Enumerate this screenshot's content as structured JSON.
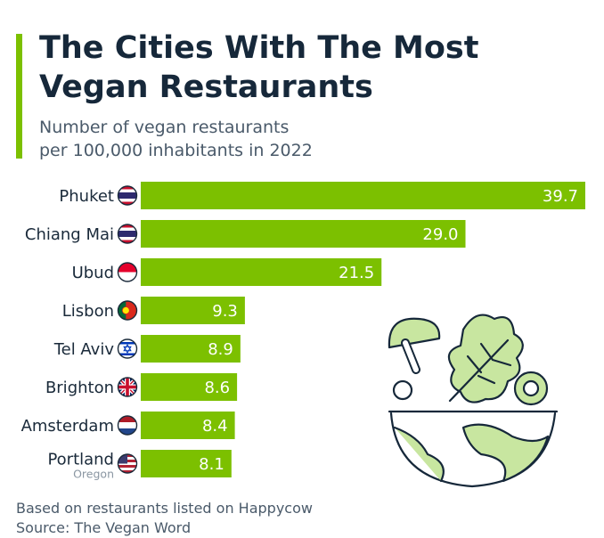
{
  "header": {
    "title": "The Cities With The Most Vegan Restaurants",
    "subtitle_line1": "Number of vegan restaurants",
    "subtitle_line2": "per 100,000 inhabitants in 2022"
  },
  "footer": {
    "note": "Based on restaurants listed on Happycow",
    "source": "Source: The Vegan Word"
  },
  "colors": {
    "accent": "#7cc000",
    "bar": "#7cc000",
    "text": "#1a2a3a"
  },
  "chart_data": {
    "type": "bar",
    "orientation": "horizontal",
    "title": "The Cities With The Most Vegan Restaurants",
    "subtitle": "Number of vegan restaurants per 100,000 inhabitants in 2022",
    "categories": [
      "Phuket",
      "Chiang Mai",
      "Ubud",
      "Lisbon",
      "Tel Aviv",
      "Brighton",
      "Amsterdam",
      "Portland"
    ],
    "category_sublabels": [
      "",
      "",
      "",
      "",
      "",
      "",
      "",
      "Oregon"
    ],
    "flags": [
      "thailand-flag",
      "thailand-flag",
      "indonesia-flag",
      "portugal-flag",
      "israel-flag",
      "uk-flag",
      "netherlands-flag",
      "usa-flag"
    ],
    "values": [
      39.7,
      29.0,
      21.5,
      9.3,
      8.9,
      8.6,
      8.4,
      8.1
    ],
    "value_labels": [
      "39.7",
      "29.0",
      "21.5",
      "9.3",
      "8.9",
      "8.6",
      "8.4",
      "8.1"
    ],
    "xlim": [
      0,
      39.7
    ],
    "grid": false,
    "legend": "none"
  }
}
